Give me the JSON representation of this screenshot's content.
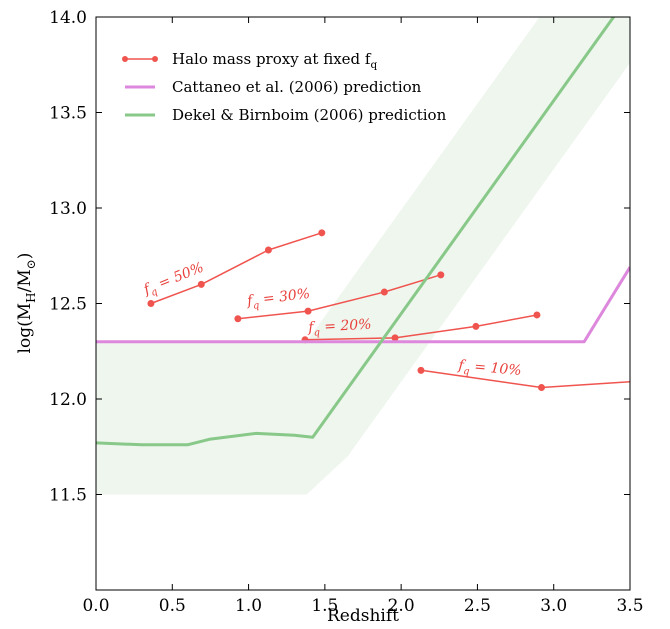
{
  "chart_data": {
    "type": "line",
    "xlabel": "Redshift",
    "ylabel": "log(M_H/M_⊙)",
    "xlim": [
      0.0,
      3.5
    ],
    "ylim": [
      11.0,
      14.0
    ],
    "xticks": [
      0.0,
      0.5,
      1.0,
      1.5,
      2.0,
      2.5,
      3.0,
      3.5
    ],
    "xtick_labels": [
      "0.0",
      "0.5",
      "1.0",
      "1.5",
      "2.0",
      "2.5",
      "3.0",
      "3.5"
    ],
    "yticks": [
      11.5,
      12.0,
      12.5,
      13.0,
      13.5,
      14.0
    ],
    "ytick_labels": [
      "11.5",
      "12.0",
      "12.5",
      "13.0",
      "13.5",
      "14.0"
    ],
    "grid": false,
    "legend_position": "top-left",
    "legend": [
      {
        "label": "Halo mass proxy at fixed f_q",
        "color": "#f0544f",
        "style": "line-marker"
      },
      {
        "label": "Cattaneo et al. (2006) prediction",
        "color": "#dd88dd",
        "style": "line"
      },
      {
        "label": "Dekel & Birnboim (2006) prediction",
        "color": "#88c888",
        "style": "line"
      }
    ],
    "series": [
      {
        "name": "f_q = 50%",
        "color": "#f0544f",
        "markers": true,
        "x": [
          0.36,
          0.69,
          1.13,
          1.48
        ],
        "y": [
          12.5,
          12.6,
          12.78,
          12.87
        ]
      },
      {
        "name": "f_q = 30%",
        "color": "#f0544f",
        "markers": true,
        "x": [
          0.93,
          1.39,
          1.89,
          2.26
        ],
        "y": [
          12.42,
          12.46,
          12.56,
          12.65
        ]
      },
      {
        "name": "f_q = 20%",
        "color": "#f0544f",
        "markers": true,
        "x": [
          1.37,
          1.96,
          2.49,
          2.89
        ],
        "y": [
          12.31,
          12.32,
          12.38,
          12.44
        ]
      },
      {
        "name": "f_q = 10%",
        "color": "#f0544f",
        "markers": true,
        "x": [
          2.13,
          2.92,
          3.5
        ],
        "y": [
          12.15,
          12.06,
          12.09
        ],
        "marker_mask": [
          true,
          true,
          false
        ]
      },
      {
        "name": "Cattaneo et al. (2006) prediction",
        "color": "#dd88dd",
        "markers": false,
        "x": [
          0.0,
          3.2,
          3.5
        ],
        "y": [
          12.3,
          12.3,
          12.69
        ]
      },
      {
        "name": "Dekel & Birnboim (2006) prediction",
        "color": "#88c888",
        "markers": false,
        "x": [
          0.0,
          0.3,
          0.6,
          0.75,
          1.05,
          1.3,
          1.42,
          3.5
        ],
        "y": [
          11.77,
          11.76,
          11.76,
          11.79,
          11.82,
          11.81,
          11.8,
          14.12
        ]
      }
    ],
    "band": {
      "color": "#eef6ee",
      "upper": {
        "x": [
          0.0,
          1.38,
          3.5
        ],
        "y": [
          12.3,
          12.3,
          14.66
        ]
      },
      "lower": {
        "x": [
          0.0,
          1.38,
          1.65,
          3.5
        ],
        "y": [
          11.5,
          11.5,
          11.7,
          13.76
        ]
      }
    },
    "annotations": [
      {
        "text": "f_q = 50%",
        "x": 0.52,
        "y": 12.61,
        "angle": -22
      },
      {
        "text": "f_q = 30%",
        "x": 1.2,
        "y": 12.51,
        "angle": -7
      },
      {
        "text": "f_q = 20%",
        "x": 1.6,
        "y": 12.36,
        "angle": -3
      },
      {
        "text": "f_q = 10%",
        "x": 2.58,
        "y": 12.14,
        "angle": 5
      }
    ]
  }
}
